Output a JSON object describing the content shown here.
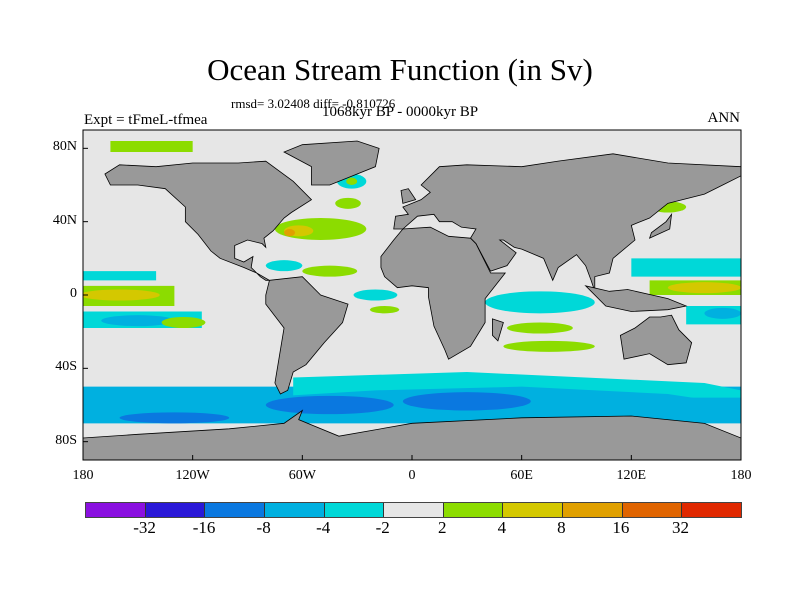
{
  "title": "Ocean Stream Function (in Sv)",
  "stats": "rmsd= 3.02408 diff= -0.810726",
  "period": "1068kyr BP - 0000kyr BP",
  "experiment": "Expt = tFmeL-tfmea",
  "season": "ANN",
  "chart_data": {
    "type": "heatmap",
    "projection": "cylindrical-equidistant",
    "lon_range": [
      -180,
      180
    ],
    "lat_range": [
      -90,
      90
    ],
    "y_ticks": [
      {
        "lat": 80,
        "label": "80N"
      },
      {
        "lat": 40,
        "label": "40N"
      },
      {
        "lat": 0,
        "label": "0"
      },
      {
        "lat": -40,
        "label": "40S"
      },
      {
        "lat": -80,
        "label": "80S"
      }
    ],
    "x_ticks": [
      {
        "lon": -180,
        "label": "180"
      },
      {
        "lon": -120,
        "label": "120W"
      },
      {
        "lon": -60,
        "label": "60W"
      },
      {
        "lon": 0,
        "label": "0"
      },
      {
        "lon": 60,
        "label": "60E"
      },
      {
        "lon": 120,
        "label": "120E"
      },
      {
        "lon": 180,
        "label": "180"
      }
    ],
    "colorbar": {
      "levels": [
        "-32",
        "-16",
        "-8",
        "-4",
        "-2",
        "2",
        "4",
        "8",
        "16",
        "32"
      ],
      "colors": [
        "#8a10e0",
        "#2a18d8",
        "#0a78e0",
        "#00b0e0",
        "#00d8d8",
        "#e6e6e6",
        "#8cdc00",
        "#d4c800",
        "#e0a000",
        "#e06400",
        "#e02800"
      ]
    },
    "land_color": "#999999"
  }
}
